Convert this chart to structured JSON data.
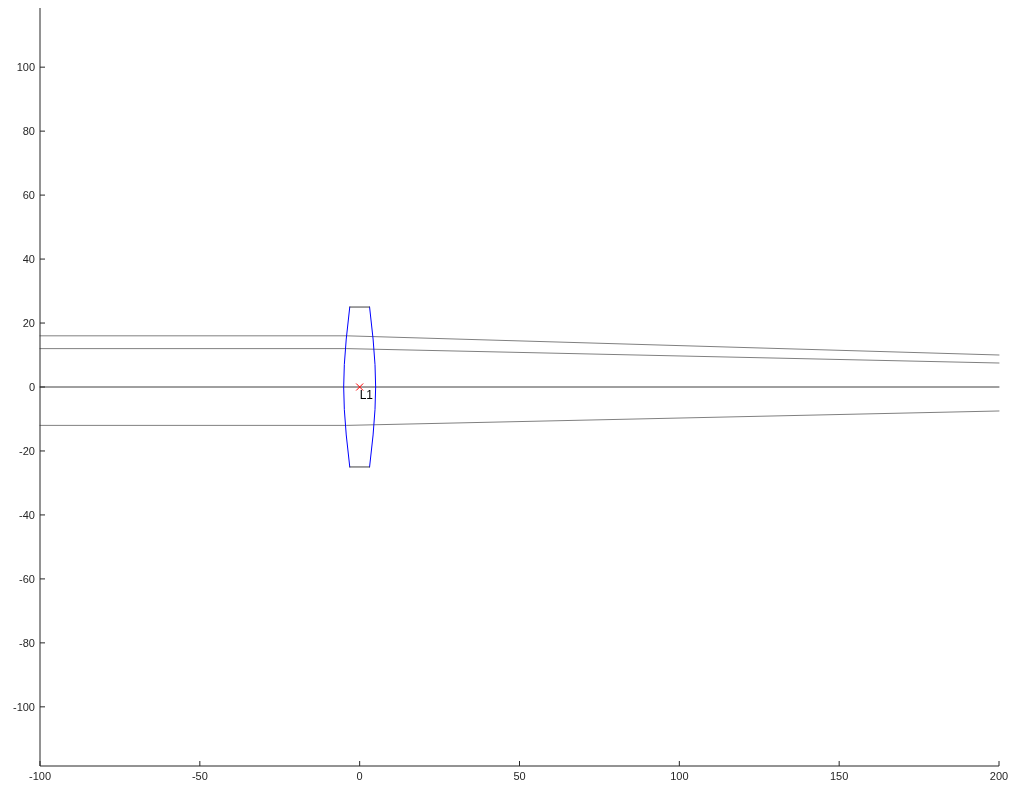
{
  "chart_data": {
    "type": "line",
    "xlim": [
      -100,
      200
    ],
    "ylim": [
      -118.5,
      118.5
    ],
    "xticks": [
      -100,
      -50,
      0,
      50,
      100,
      150,
      200
    ],
    "yticks": [
      -100,
      -80,
      -60,
      -40,
      -20,
      0,
      20,
      40,
      60,
      80,
      100
    ],
    "grid": false,
    "marker": "none",
    "line_style": "solid",
    "series": [
      {
        "color": "#808080",
        "x": [
          -100,
          -4,
          200
        ],
        "values": [
          16,
          16,
          10
        ]
      },
      {
        "color": "#808080",
        "x": [
          -100,
          -4,
          200
        ],
        "values": [
          12,
          12,
          7.5
        ]
      },
      {
        "color": "#404040",
        "x": [
          -100,
          200
        ],
        "values": [
          0,
          0
        ]
      },
      {
        "color": "#808080",
        "x": [
          -100,
          -4,
          200
        ],
        "values": [
          -12,
          -12,
          -7.5
        ]
      },
      {
        "color": "#0000ff",
        "x": [
          -3.1,
          -4.2,
          -4.8,
          -5,
          -4.8,
          -4.2,
          -3.1
        ],
        "values": [
          25,
          15,
          7,
          0,
          -7,
          -15,
          -25
        ]
      },
      {
        "color": "#0000ff",
        "x": [
          3.1,
          4.2,
          4.8,
          5,
          4.8,
          4.2,
          3.1
        ],
        "values": [
          25,
          15,
          7,
          0,
          -7,
          -15,
          -25
        ]
      },
      {
        "color": "#404040",
        "x": [
          -3.1,
          3.1
        ],
        "values": [
          25,
          25
        ]
      },
      {
        "color": "#404040",
        "x": [
          -3.1,
          3.1
        ],
        "values": [
          -25,
          -25
        ]
      },
      {
        "type": "scatter",
        "marker": "cross",
        "color": "#ff0000",
        "x": [
          0
        ],
        "values": [
          0
        ]
      }
    ],
    "annotations": [
      {
        "text": "L1",
        "x": 0,
        "y": 0
      }
    ]
  }
}
